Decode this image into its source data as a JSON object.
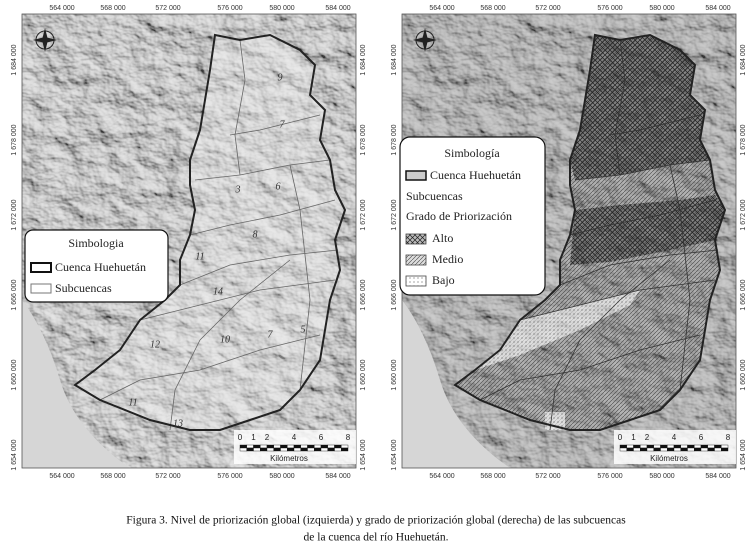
{
  "caption": [
    "Figura 3. Nivel de priorización global (izquierda) y grado de priorización global (derecha) de las subcuencas",
    "de la cuenca del río Huehuetán."
  ],
  "maps": [
    {
      "x_labels": [
        "564 000",
        "568 000",
        "572 000",
        "576 000",
        "580 000",
        "584 000"
      ],
      "y_labels": [
        "1 684 000",
        "1 678 000",
        "1 672 000",
        "1 666 000",
        "1 660 000",
        "1 654 000"
      ],
      "legend": {
        "title": "Simbologia",
        "items": [
          "Cuenca Huehuetán",
          "Subcuencas"
        ]
      },
      "subbasin_labels": [
        "9",
        "7",
        "3",
        "6",
        "8",
        "11",
        "14",
        "12",
        "10",
        "7",
        "5",
        "11",
        "13"
      ],
      "scale": {
        "ticks": [
          "0",
          "1",
          "2",
          "4",
          "6",
          "8"
        ],
        "unit": "Kilómetros"
      }
    },
    {
      "x_labels": [
        "564 000",
        "568 000",
        "572 000",
        "576 000",
        "580 000",
        "584 000"
      ],
      "y_labels": [
        "1 684 000",
        "1 678 000",
        "1 672 000",
        "1 666 000",
        "1 660 000",
        "1 654 000"
      ],
      "legend": {
        "title": "Simbología",
        "items": [
          "Cuenca Huehuetán",
          "Subcuencas"
        ],
        "priority_title": "Grado de Priorización",
        "priority_items": [
          "Alto",
          "Medio",
          "Bajo"
        ]
      },
      "scale": {
        "ticks": [
          "0",
          "1",
          "2",
          "4",
          "6",
          "8"
        ],
        "unit": "Kilómetros"
      }
    }
  ]
}
